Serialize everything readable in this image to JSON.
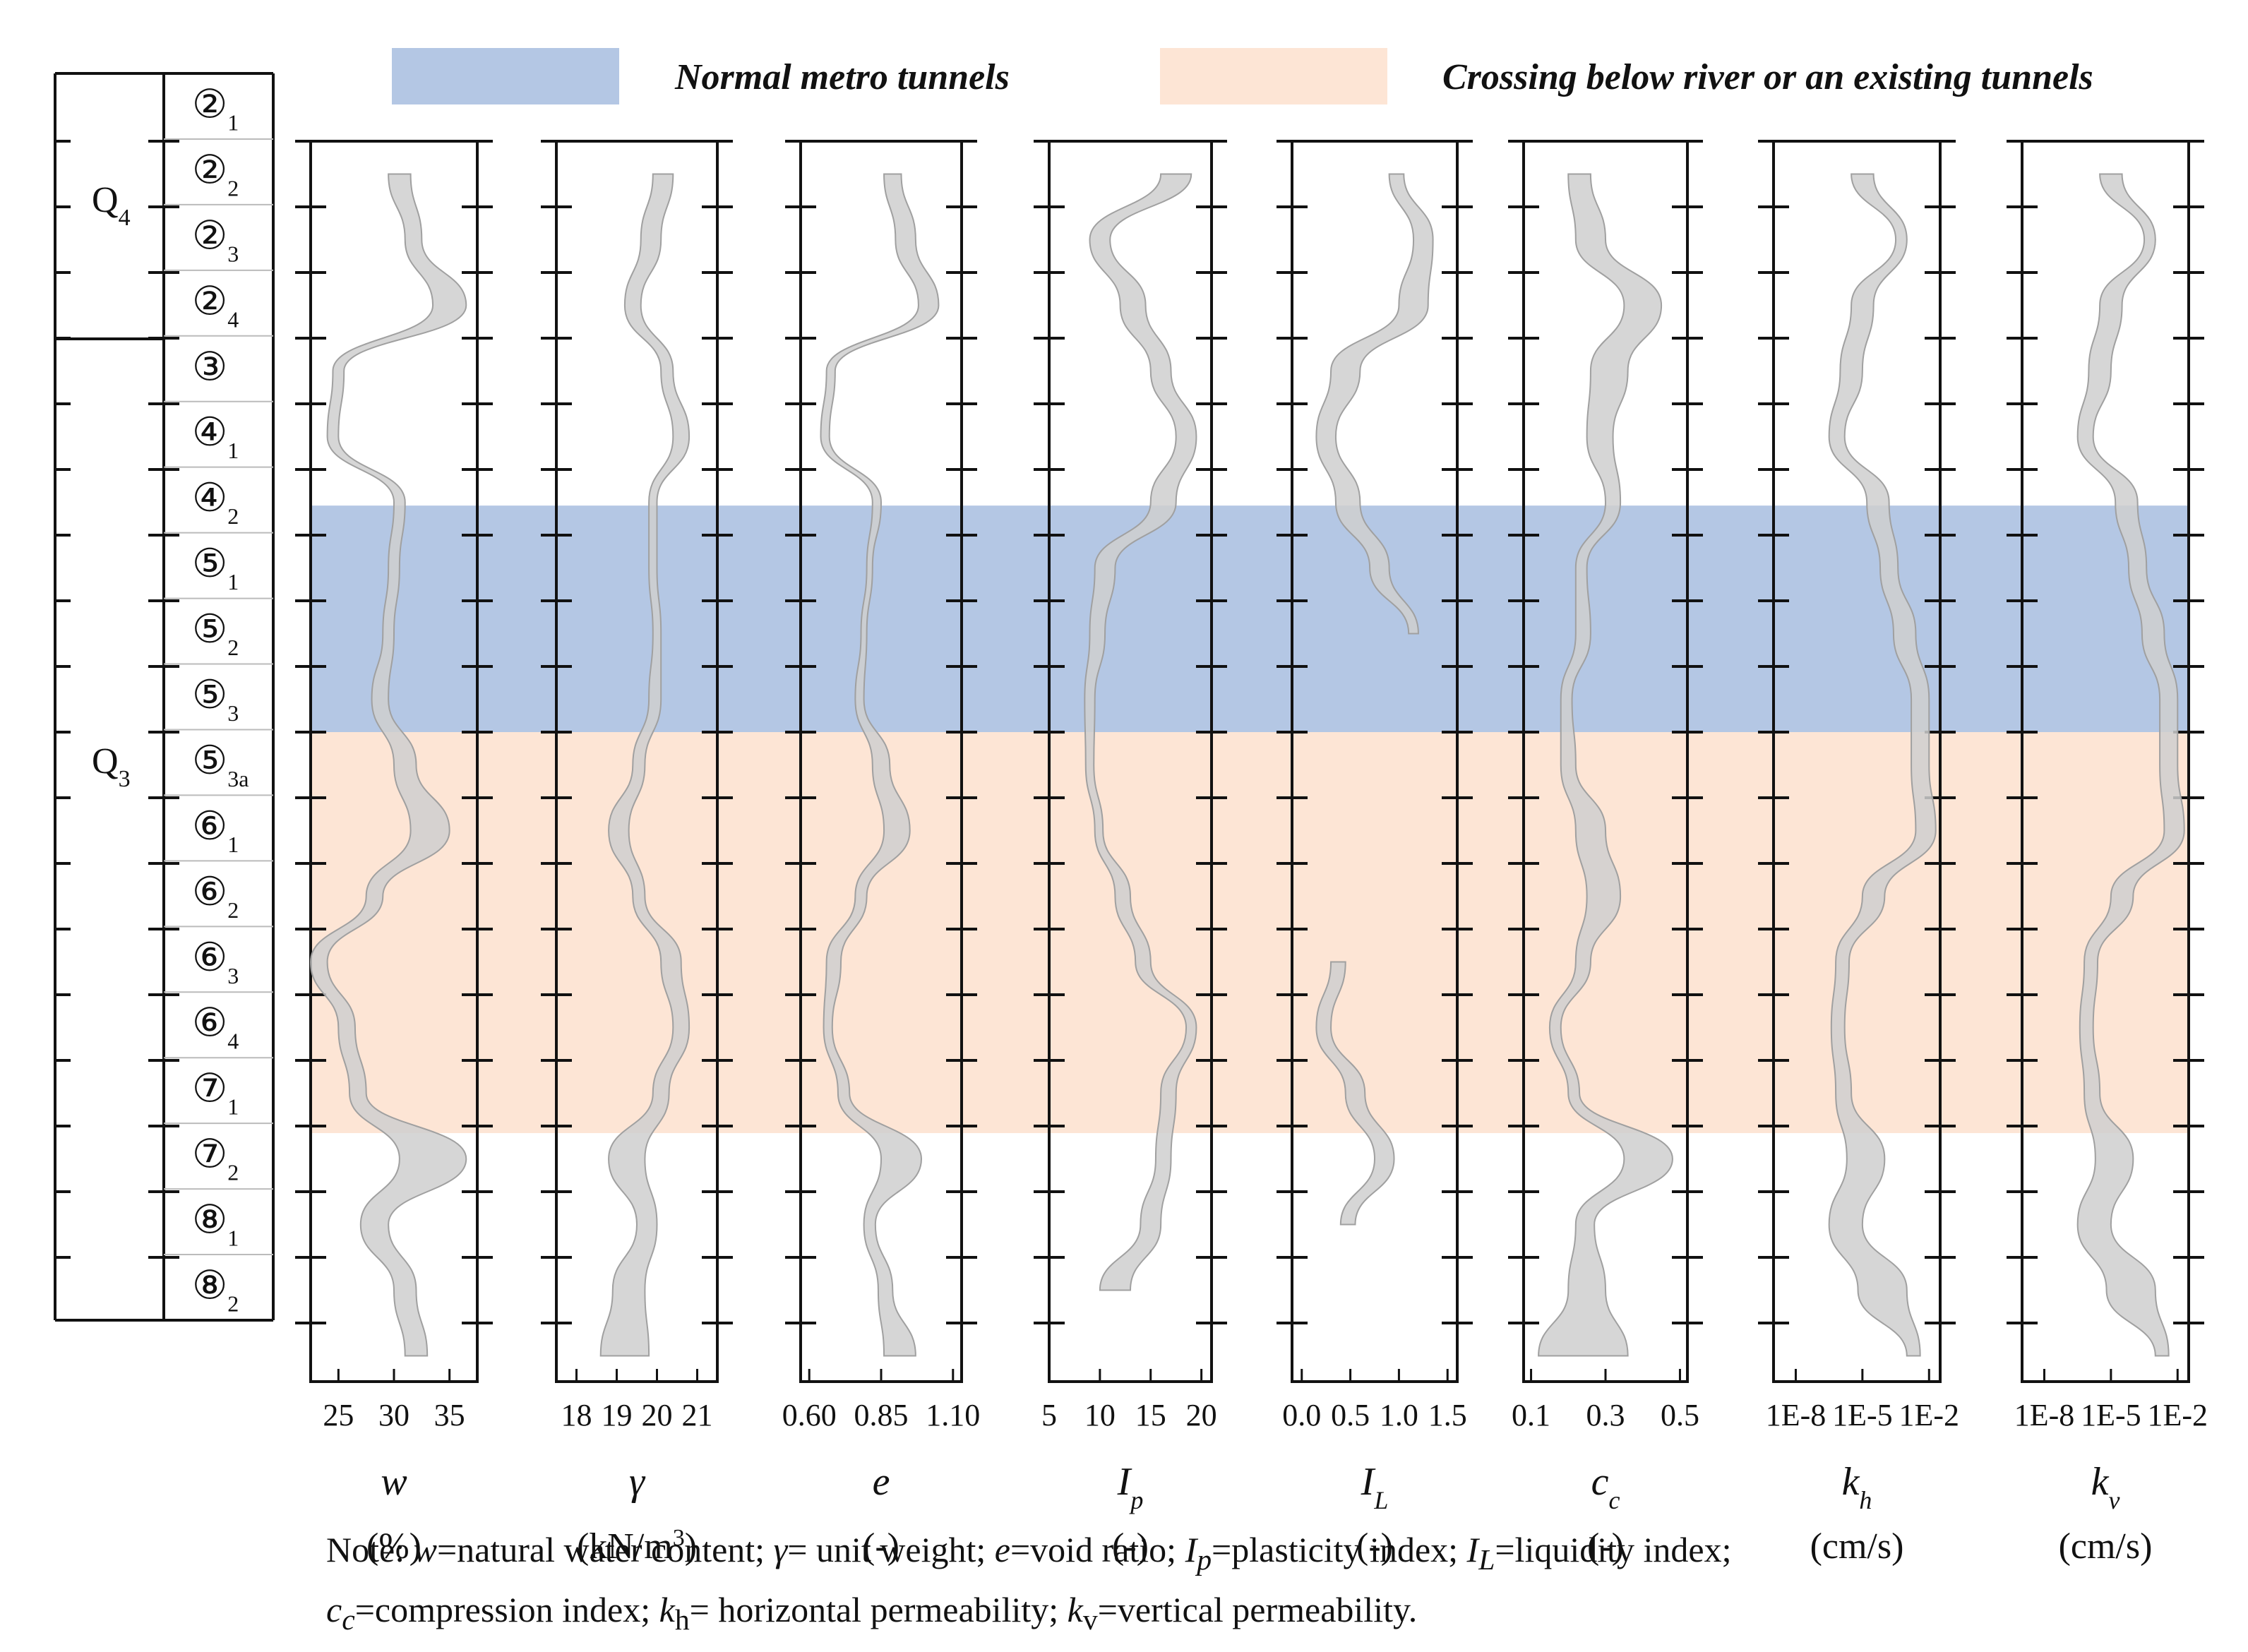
{
  "chart_data": {
    "type": "area",
    "description_kind": "soil-profile range bands",
    "legend": [
      {
        "label": "Normal metro tunnels",
        "color": "#b4c7e4"
      },
      {
        "label": "Crossing below river or an existing tunnels",
        "color": "#fde5d5"
      }
    ],
    "band_colors": {
      "fill": "#cfcfcf",
      "stroke": "#a0a0a0"
    },
    "strata": {
      "groups": [
        {
          "label": "Q4",
          "main": "Q",
          "sub": "4"
        },
        {
          "label": "Q3",
          "main": "Q",
          "sub": "3"
        }
      ],
      "layers": [
        {
          "glyph": "②",
          "sub": "1"
        },
        {
          "glyph": "②",
          "sub": "2"
        },
        {
          "glyph": "②",
          "sub": "3"
        },
        {
          "glyph": "②",
          "sub": "4"
        },
        {
          "glyph": "③",
          "sub": ""
        },
        {
          "glyph": "④",
          "sub": "1"
        },
        {
          "glyph": "④",
          "sub": "2"
        },
        {
          "glyph": "⑤",
          "sub": "1"
        },
        {
          "glyph": "⑤",
          "sub": "2"
        },
        {
          "glyph": "⑤",
          "sub": "3"
        },
        {
          "glyph": "⑤",
          "sub": "3a"
        },
        {
          "glyph": "⑥",
          "sub": "1"
        },
        {
          "glyph": "⑥",
          "sub": "2"
        },
        {
          "glyph": "⑥",
          "sub": "3"
        },
        {
          "glyph": "⑥",
          "sub": "4"
        },
        {
          "glyph": "⑦",
          "sub": "1"
        },
        {
          "glyph": "⑦",
          "sub": "2"
        },
        {
          "glyph": "⑧",
          "sub": "1"
        },
        {
          "glyph": "⑧",
          "sub": "2"
        }
      ],
      "normal_tunnel_layers": [
        5,
        8
      ],
      "crossing_layers": [
        9,
        14
      ]
    },
    "panels": [
      {
        "key": "w",
        "symbol": "w",
        "sub": "",
        "unit": "(%)",
        "scale": "linear",
        "xlim": [
          22.5,
          37.5
        ],
        "ticks": [
          25,
          30,
          35
        ],
        "tick_labels": [
          "25",
          "30",
          "35"
        ],
        "range_by_layer": [
          [
            29.5,
            31.5
          ],
          [
            31,
            32.5
          ],
          [
            33.5,
            36.5
          ],
          [
            24.5,
            25.5
          ],
          [
            24,
            25
          ],
          [
            30,
            31
          ],
          [
            29.5,
            30.5
          ],
          [
            29,
            30
          ],
          [
            28,
            29.5
          ],
          [
            30,
            32
          ],
          [
            31.5,
            35
          ],
          [
            27.5,
            29
          ],
          [
            22.5,
            24
          ],
          [
            25,
            26.5
          ],
          [
            26,
            27.5
          ],
          [
            30.5,
            36.5
          ],
          [
            27,
            29.5
          ],
          [
            30,
            32
          ],
          [
            31,
            33
          ]
        ]
      },
      {
        "key": "gamma",
        "symbol": "γ",
        "sub": "",
        "unit_parts": [
          "(kN/m",
          "3",
          ")"
        ],
        "scale": "linear",
        "xlim": [
          17.5,
          21.5
        ],
        "ticks": [
          18,
          19,
          20,
          21
        ],
        "tick_labels": [
          "18",
          "19",
          "20",
          "21"
        ],
        "range_by_layer": [
          [
            19.9,
            20.4
          ],
          [
            19.6,
            20.1
          ],
          [
            19.2,
            19.6
          ],
          [
            20.1,
            20.4
          ],
          [
            20.4,
            20.8
          ],
          [
            19.8,
            20.0
          ],
          [
            19.8,
            20.0
          ],
          [
            19.9,
            20.1
          ],
          [
            19.8,
            20.1
          ],
          [
            19.4,
            19.7
          ],
          [
            18.8,
            19.3
          ],
          [
            19.4,
            19.7
          ],
          [
            20.1,
            20.6
          ],
          [
            20.4,
            20.8
          ],
          [
            19.9,
            20.3
          ],
          [
            18.8,
            19.7
          ],
          [
            19.5,
            20.0
          ],
          [
            18.9,
            19.7
          ],
          [
            18.6,
            19.8
          ]
        ]
      },
      {
        "key": "e",
        "symbol": "e",
        "sub": "",
        "unit": "(-)",
        "scale": "linear",
        "xlim": [
          0.57,
          1.13
        ],
        "ticks": [
          0.6,
          0.85,
          1.1
        ],
        "tick_labels": [
          "0.60",
          "0.85",
          "1.10"
        ],
        "range_by_layer": [
          [
            0.86,
            0.92
          ],
          [
            0.9,
            0.97
          ],
          [
            0.98,
            1.05
          ],
          [
            0.66,
            0.69
          ],
          [
            0.64,
            0.67
          ],
          [
            0.82,
            0.85
          ],
          [
            0.8,
            0.82
          ],
          [
            0.78,
            0.8
          ],
          [
            0.76,
            0.79
          ],
          [
            0.82,
            0.88
          ],
          [
            0.86,
            0.95
          ],
          [
            0.76,
            0.8
          ],
          [
            0.66,
            0.71
          ],
          [
            0.65,
            0.68
          ],
          [
            0.7,
            0.74
          ],
          [
            0.85,
            0.99
          ],
          [
            0.79,
            0.83
          ],
          [
            0.84,
            0.89
          ],
          [
            0.86,
            0.97
          ]
        ]
      },
      {
        "key": "Ip",
        "symbol": "I",
        "sub": "p",
        "unit": "(-)",
        "scale": "linear",
        "xlim": [
          5,
          21
        ],
        "ticks": [
          5,
          10,
          15,
          20
        ],
        "tick_labels": [
          "5",
          "10",
          "15",
          "20"
        ],
        "range_by_layer": [
          [
            16,
            19
          ],
          [
            9,
            11
          ],
          [
            12,
            14.5
          ],
          [
            15,
            17
          ],
          [
            17.5,
            19.5
          ],
          [
            15,
            17.5
          ],
          [
            9.5,
            11.5
          ],
          [
            9,
            10.5
          ],
          [
            8.5,
            9.5
          ],
          [
            8.6,
            9.4
          ],
          [
            9.5,
            10.3
          ],
          [
            11.5,
            13
          ],
          [
            13.5,
            15
          ],
          [
            18.5,
            19.5
          ],
          [
            16,
            17.5
          ],
          [
            15.5,
            17
          ],
          [
            14,
            16
          ],
          [
            10,
            13
          ],
          [
            null,
            null
          ]
        ]
      },
      {
        "key": "IL",
        "symbol": "I",
        "sub": "L",
        "unit": "(-)",
        "scale": "linear",
        "xlim": [
          -0.1,
          1.6
        ],
        "ticks": [
          0.0,
          0.5,
          1.0,
          1.5
        ],
        "tick_labels": [
          "0.0",
          "0.5",
          "1.0",
          "1.5"
        ],
        "range_by_layer": [
          [
            0.9,
            1.05
          ],
          [
            1.15,
            1.35
          ],
          [
            1.0,
            1.3
          ],
          [
            0.3,
            0.6
          ],
          [
            0.15,
            0.35
          ],
          [
            0.35,
            0.6
          ],
          [
            0.7,
            0.9
          ],
          [
            1.1,
            1.2
          ],
          [
            null,
            null
          ],
          [
            null,
            null
          ],
          [
            null,
            null
          ],
          [
            null,
            null
          ],
          [
            0.3,
            0.45
          ],
          [
            0.15,
            0.3
          ],
          [
            0.45,
            0.65
          ],
          [
            0.75,
            0.95
          ],
          [
            0.4,
            0.55
          ],
          [
            null,
            null
          ],
          [
            null,
            null
          ]
        ]
      },
      {
        "key": "cc",
        "symbol": "c",
        "sub": "c",
        "unit": "(-)",
        "scale": "linear",
        "xlim": [
          0.08,
          0.52
        ],
        "ticks": [
          0.1,
          0.3,
          0.5
        ],
        "tick_labels": [
          "0.1",
          "0.3",
          "0.5"
        ],
        "range_by_layer": [
          [
            0.2,
            0.26
          ],
          [
            0.22,
            0.3
          ],
          [
            0.35,
            0.45
          ],
          [
            0.26,
            0.36
          ],
          [
            0.25,
            0.32
          ],
          [
            0.3,
            0.34
          ],
          [
            0.22,
            0.25
          ],
          [
            0.22,
            0.26
          ],
          [
            0.18,
            0.21
          ],
          [
            0.18,
            0.22
          ],
          [
            0.22,
            0.3
          ],
          [
            0.25,
            0.34
          ],
          [
            0.22,
            0.26
          ],
          [
            0.15,
            0.18
          ],
          [
            0.2,
            0.23
          ],
          [
            0.35,
            0.48
          ],
          [
            0.22,
            0.27
          ],
          [
            0.2,
            0.3
          ],
          [
            0.12,
            0.36
          ]
        ]
      },
      {
        "key": "kh",
        "symbol": "k",
        "sub": "h",
        "unit": "(cm/s)",
        "scale": "log",
        "xlim": [
          -9,
          -1.5
        ],
        "ticks": [
          -8,
          -5,
          -2
        ],
        "tick_labels": [
          "1E-8",
          "1E-5",
          "1E-2"
        ],
        "range_by_layer": [
          [
            -5.5,
            -4.5
          ],
          [
            -3.5,
            -3
          ],
          [
            -5.5,
            -4.5
          ],
          [
            -6,
            -5
          ],
          [
            -6.5,
            -5.8
          ],
          [
            -4.8,
            -3.8
          ],
          [
            -4.2,
            -3.4
          ],
          [
            -3.6,
            -2.6
          ],
          [
            -2.8,
            -2
          ],
          [
            -2.8,
            -2
          ],
          [
            -2.6,
            -1.7
          ],
          [
            -5,
            -4
          ],
          [
            -6.2,
            -5.6
          ],
          [
            -6.4,
            -5.8
          ],
          [
            -6.2,
            -5.5
          ],
          [
            -5.7,
            -4
          ],
          [
            -6.5,
            -5
          ],
          [
            -5.2,
            -3
          ],
          [
            -3,
            -2.4
          ]
        ]
      },
      {
        "key": "kv",
        "symbol": "k",
        "sub": "v",
        "unit": "(cm/s)",
        "scale": "log",
        "xlim": [
          -9,
          -1.5
        ],
        "ticks": [
          -8,
          -5,
          -2
        ],
        "tick_labels": [
          "1E-8",
          "1E-5",
          "1E-2"
        ],
        "range_by_layer": [
          [
            -5.5,
            -4.5
          ],
          [
            -3.5,
            -3
          ],
          [
            -5.5,
            -4.5
          ],
          [
            -6,
            -5
          ],
          [
            -6.5,
            -5.8
          ],
          [
            -4.8,
            -3.8
          ],
          [
            -4.2,
            -3.4
          ],
          [
            -3.6,
            -2.6
          ],
          [
            -2.8,
            -2
          ],
          [
            -2.8,
            -2
          ],
          [
            -2.6,
            -1.7
          ],
          [
            -5,
            -4
          ],
          [
            -6.2,
            -5.6
          ],
          [
            -6.4,
            -5.8
          ],
          [
            -6.2,
            -5.5
          ],
          [
            -5.7,
            -4
          ],
          [
            -6.5,
            -5
          ],
          [
            -5.2,
            -3
          ],
          [
            -3,
            -2.4
          ]
        ]
      }
    ]
  },
  "note": {
    "line1": [
      "Note: ",
      "w",
      "=natural water content; ",
      "γ",
      "= unit weight; ",
      "e",
      "=void ratio; ",
      "I",
      "p",
      "=plasticity index; ",
      "I",
      "L",
      "=liquidity index;"
    ],
    "line2": [
      "c",
      "c",
      "=compression index; ",
      "k",
      "h",
      "= horizontal permeability; ",
      "k",
      "v",
      "=vertical permeability."
    ]
  }
}
